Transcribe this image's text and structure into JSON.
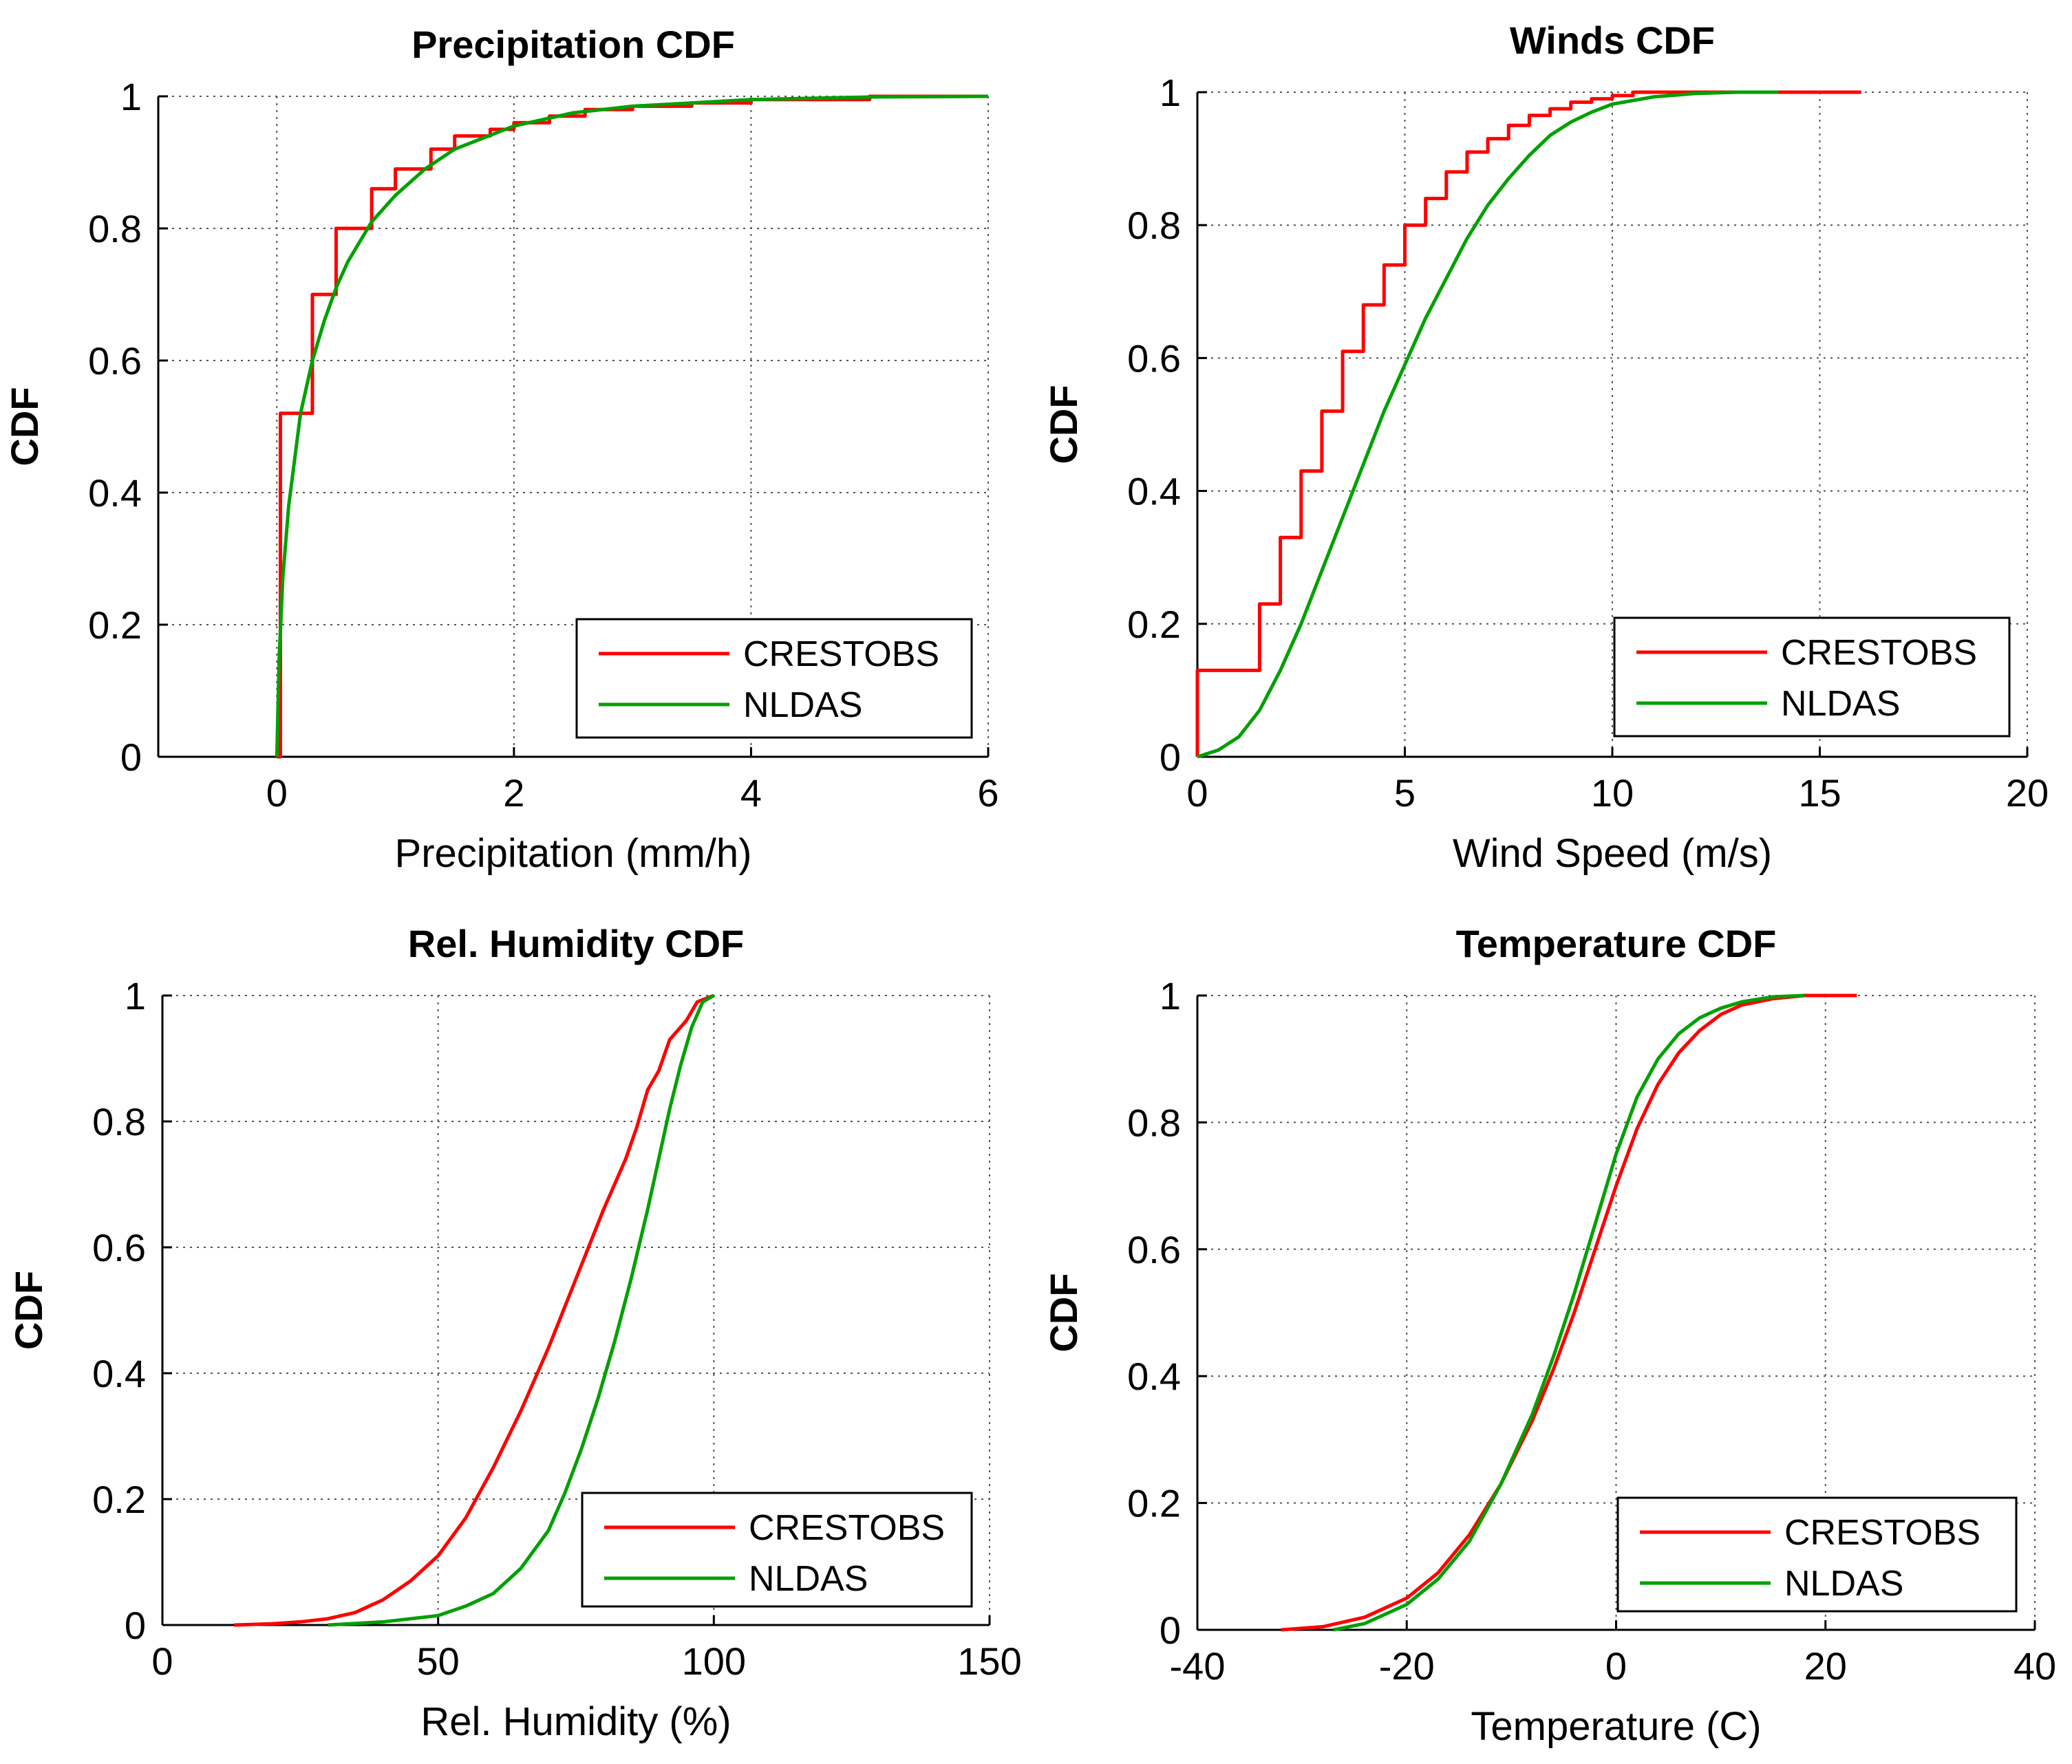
{
  "colors": {
    "crestobs": "#ff0000",
    "nldas": "#00a000",
    "axis": "#000000",
    "grid": "#555555"
  },
  "chart_data": [
    {
      "type": "line",
      "title": "Precipitation CDF",
      "xlabel": "Precipitation (mm/h)",
      "ylabel": "CDF",
      "xlim": [
        -1,
        6
      ],
      "ylim": [
        0,
        1
      ],
      "xticks": [
        0,
        2,
        4,
        6
      ],
      "yticks": [
        0,
        0.2,
        0.4,
        0.6,
        0.8,
        1
      ],
      "xtick_labels": [
        "0",
        "2",
        "4",
        "6"
      ],
      "ytick_labels": [
        "0",
        "0.2",
        "0.4",
        "0.6",
        "0.8",
        "1"
      ],
      "grid": true,
      "legend": {
        "location": "lower-right",
        "entries": [
          "CRESTOBS",
          "NLDAS"
        ]
      },
      "series": [
        {
          "name": "CRESTOBS",
          "color": "#ff0000",
          "step": true,
          "x": [
            0,
            0.03,
            0.3,
            0.5,
            0.8,
            1.0,
            1.3,
            1.5,
            1.8,
            2.0,
            2.3,
            2.6,
            3.0,
            3.5,
            4.0,
            5.0,
            6.0
          ],
          "y": [
            0,
            0.52,
            0.7,
            0.8,
            0.86,
            0.89,
            0.92,
            0.94,
            0.95,
            0.96,
            0.97,
            0.98,
            0.985,
            0.99,
            0.995,
            1.0,
            1.0
          ]
        },
        {
          "name": "NLDAS",
          "color": "#00a000",
          "step": false,
          "x": [
            0,
            0.02,
            0.05,
            0.1,
            0.2,
            0.3,
            0.4,
            0.5,
            0.6,
            0.8,
            1.0,
            1.25,
            1.5,
            2.0,
            2.5,
            3.0,
            4.0,
            5.0,
            6.0
          ],
          "y": [
            0,
            0.15,
            0.27,
            0.38,
            0.52,
            0.6,
            0.66,
            0.71,
            0.75,
            0.81,
            0.85,
            0.89,
            0.92,
            0.955,
            0.975,
            0.985,
            0.995,
            0.999,
            1.0
          ]
        }
      ]
    },
    {
      "type": "line",
      "title": "Winds CDF",
      "xlabel": "Wind Speed (m/s)",
      "ylabel": "CDF",
      "xlim": [
        0,
        20
      ],
      "ylim": [
        0,
        1
      ],
      "xticks": [
        0,
        5,
        10,
        15,
        20
      ],
      "yticks": [
        0,
        0.2,
        0.4,
        0.6,
        0.8,
        1
      ],
      "xtick_labels": [
        "0",
        "5",
        "10",
        "15",
        "20"
      ],
      "ytick_labels": [
        "0",
        "0.2",
        "0.4",
        "0.6",
        "0.8",
        "1"
      ],
      "grid": true,
      "legend": {
        "location": "lower-right",
        "entries": [
          "CRESTOBS",
          "NLDAS"
        ]
      },
      "series": [
        {
          "name": "CRESTOBS",
          "color": "#ff0000",
          "step": true,
          "x": [
            0,
            1.5,
            2.0,
            2.5,
            3.0,
            3.5,
            4.0,
            4.5,
            5.0,
            5.5,
            6.0,
            6.5,
            7.0,
            7.5,
            8.0,
            8.5,
            9.0,
            9.5,
            10.0,
            10.5,
            11.0,
            16.0
          ],
          "y": [
            0.13,
            0.23,
            0.33,
            0.43,
            0.52,
            0.61,
            0.68,
            0.74,
            0.8,
            0.84,
            0.88,
            0.91,
            0.93,
            0.95,
            0.965,
            0.975,
            0.985,
            0.99,
            0.995,
            1.0,
            1.0,
            1.0
          ]
        },
        {
          "name": "NLDAS",
          "color": "#00a000",
          "step": false,
          "x": [
            0,
            0.5,
            1.0,
            1.5,
            2.0,
            2.5,
            3.0,
            3.5,
            4.0,
            4.5,
            5.0,
            5.5,
            6.0,
            6.5,
            7.0,
            7.5,
            8.0,
            8.5,
            9.0,
            9.5,
            10.0,
            11.0,
            12.0,
            13.0,
            14.0
          ],
          "y": [
            0,
            0.01,
            0.03,
            0.07,
            0.13,
            0.2,
            0.28,
            0.36,
            0.44,
            0.52,
            0.59,
            0.66,
            0.72,
            0.78,
            0.83,
            0.87,
            0.905,
            0.935,
            0.955,
            0.97,
            0.982,
            0.993,
            0.998,
            1.0,
            1.0
          ]
        }
      ]
    },
    {
      "type": "line",
      "title": "Rel. Humidity CDF",
      "xlabel": "Rel. Humidity (%)",
      "ylabel": "CDF",
      "xlim": [
        0,
        150
      ],
      "ylim": [
        0,
        1
      ],
      "xticks": [
        0,
        50,
        100,
        150
      ],
      "yticks": [
        0,
        0.2,
        0.4,
        0.6,
        0.8,
        1
      ],
      "xtick_labels": [
        "0",
        "50",
        "100",
        "150"
      ],
      "ytick_labels": [
        "0",
        "0.2",
        "0.4",
        "0.6",
        "0.8",
        "1"
      ],
      "grid": true,
      "legend": {
        "location": "lower-right",
        "entries": [
          "CRESTOBS",
          "NLDAS"
        ]
      },
      "series": [
        {
          "name": "CRESTOBS",
          "color": "#ff0000",
          "step": false,
          "x": [
            13,
            20,
            25,
            30,
            35,
            40,
            45,
            50,
            55,
            60,
            65,
            70,
            75,
            80,
            84,
            86,
            88,
            90,
            92,
            95,
            97,
            100
          ],
          "y": [
            0,
            0.002,
            0.005,
            0.01,
            0.02,
            0.04,
            0.07,
            0.11,
            0.17,
            0.25,
            0.34,
            0.44,
            0.55,
            0.66,
            0.74,
            0.79,
            0.85,
            0.88,
            0.93,
            0.96,
            0.99,
            1.0
          ]
        },
        {
          "name": "NLDAS",
          "color": "#00a000",
          "step": false,
          "x": [
            30,
            40,
            50,
            55,
            60,
            65,
            70,
            73,
            76,
            79,
            82,
            85,
            88,
            90,
            92,
            94,
            96,
            98,
            100
          ],
          "y": [
            0,
            0.005,
            0.015,
            0.03,
            0.05,
            0.09,
            0.15,
            0.21,
            0.28,
            0.36,
            0.45,
            0.55,
            0.66,
            0.74,
            0.82,
            0.89,
            0.95,
            0.99,
            1.0
          ]
        }
      ]
    },
    {
      "type": "line",
      "title": "Temperature CDF",
      "xlabel": "Temperature (C)",
      "ylabel": "CDF",
      "xlim": [
        -40,
        40
      ],
      "ylim": [
        0,
        1
      ],
      "xticks": [
        -40,
        -20,
        0,
        20,
        40
      ],
      "yticks": [
        0,
        0.2,
        0.4,
        0.6,
        0.8,
        1
      ],
      "xtick_labels": [
        "-40",
        "-20",
        "0",
        "20",
        "40"
      ],
      "ytick_labels": [
        "0",
        "0.2",
        "0.4",
        "0.6",
        "0.8",
        "1"
      ],
      "grid": true,
      "legend": {
        "location": "lower-right",
        "entries": [
          "CRESTOBS",
          "NLDAS"
        ]
      },
      "series": [
        {
          "name": "CRESTOBS",
          "color": "#ff0000",
          "step": false,
          "x": [
            -32,
            -28,
            -24,
            -20,
            -17,
            -14,
            -11,
            -8,
            -6,
            -4,
            -2,
            0,
            2,
            4,
            6,
            8,
            10,
            12,
            15,
            18,
            23
          ],
          "y": [
            0,
            0.005,
            0.02,
            0.05,
            0.09,
            0.15,
            0.23,
            0.33,
            0.41,
            0.5,
            0.6,
            0.7,
            0.79,
            0.86,
            0.91,
            0.945,
            0.97,
            0.985,
            0.995,
            1.0,
            1.0
          ]
        },
        {
          "name": "NLDAS",
          "color": "#00a000",
          "step": false,
          "x": [
            -27,
            -24,
            -20,
            -17,
            -14,
            -11,
            -8,
            -6,
            -4,
            -2,
            0,
            2,
            4,
            6,
            8,
            10,
            12,
            15,
            18
          ],
          "y": [
            0,
            0.01,
            0.04,
            0.08,
            0.14,
            0.23,
            0.34,
            0.43,
            0.53,
            0.64,
            0.75,
            0.84,
            0.9,
            0.94,
            0.965,
            0.98,
            0.99,
            0.998,
            1.0
          ]
        }
      ]
    }
  ]
}
